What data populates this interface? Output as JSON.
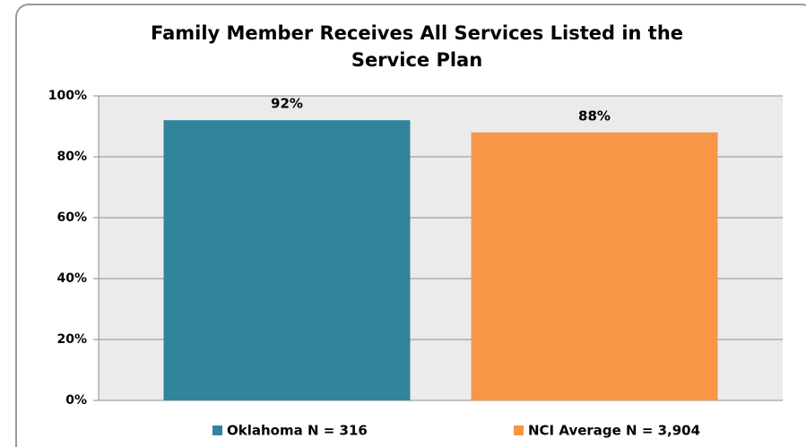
{
  "chart_data": {
    "type": "bar",
    "title": [
      "Family Member Receives All Services Listed in the",
      "Service Plan"
    ],
    "series": [
      {
        "name": "Oklahoma N = 316",
        "color": "#31849b",
        "values": [
          92
        ],
        "value_labels": [
          "92%"
        ]
      },
      {
        "name": "NCI Average N = 3,904",
        "color": "#f79646",
        "values": [
          88
        ],
        "value_labels": [
          "88%"
        ]
      }
    ],
    "ylim": [
      0,
      100
    ],
    "yticks": [
      {
        "value": 0,
        "label": "0%"
      },
      {
        "value": 20,
        "label": "20%"
      },
      {
        "value": 40,
        "label": "40%"
      },
      {
        "value": 60,
        "label": "60%"
      },
      {
        "value": 80,
        "label": "80%"
      },
      {
        "value": 100,
        "label": "100%"
      }
    ],
    "grid": true,
    "legend": "bottom"
  }
}
